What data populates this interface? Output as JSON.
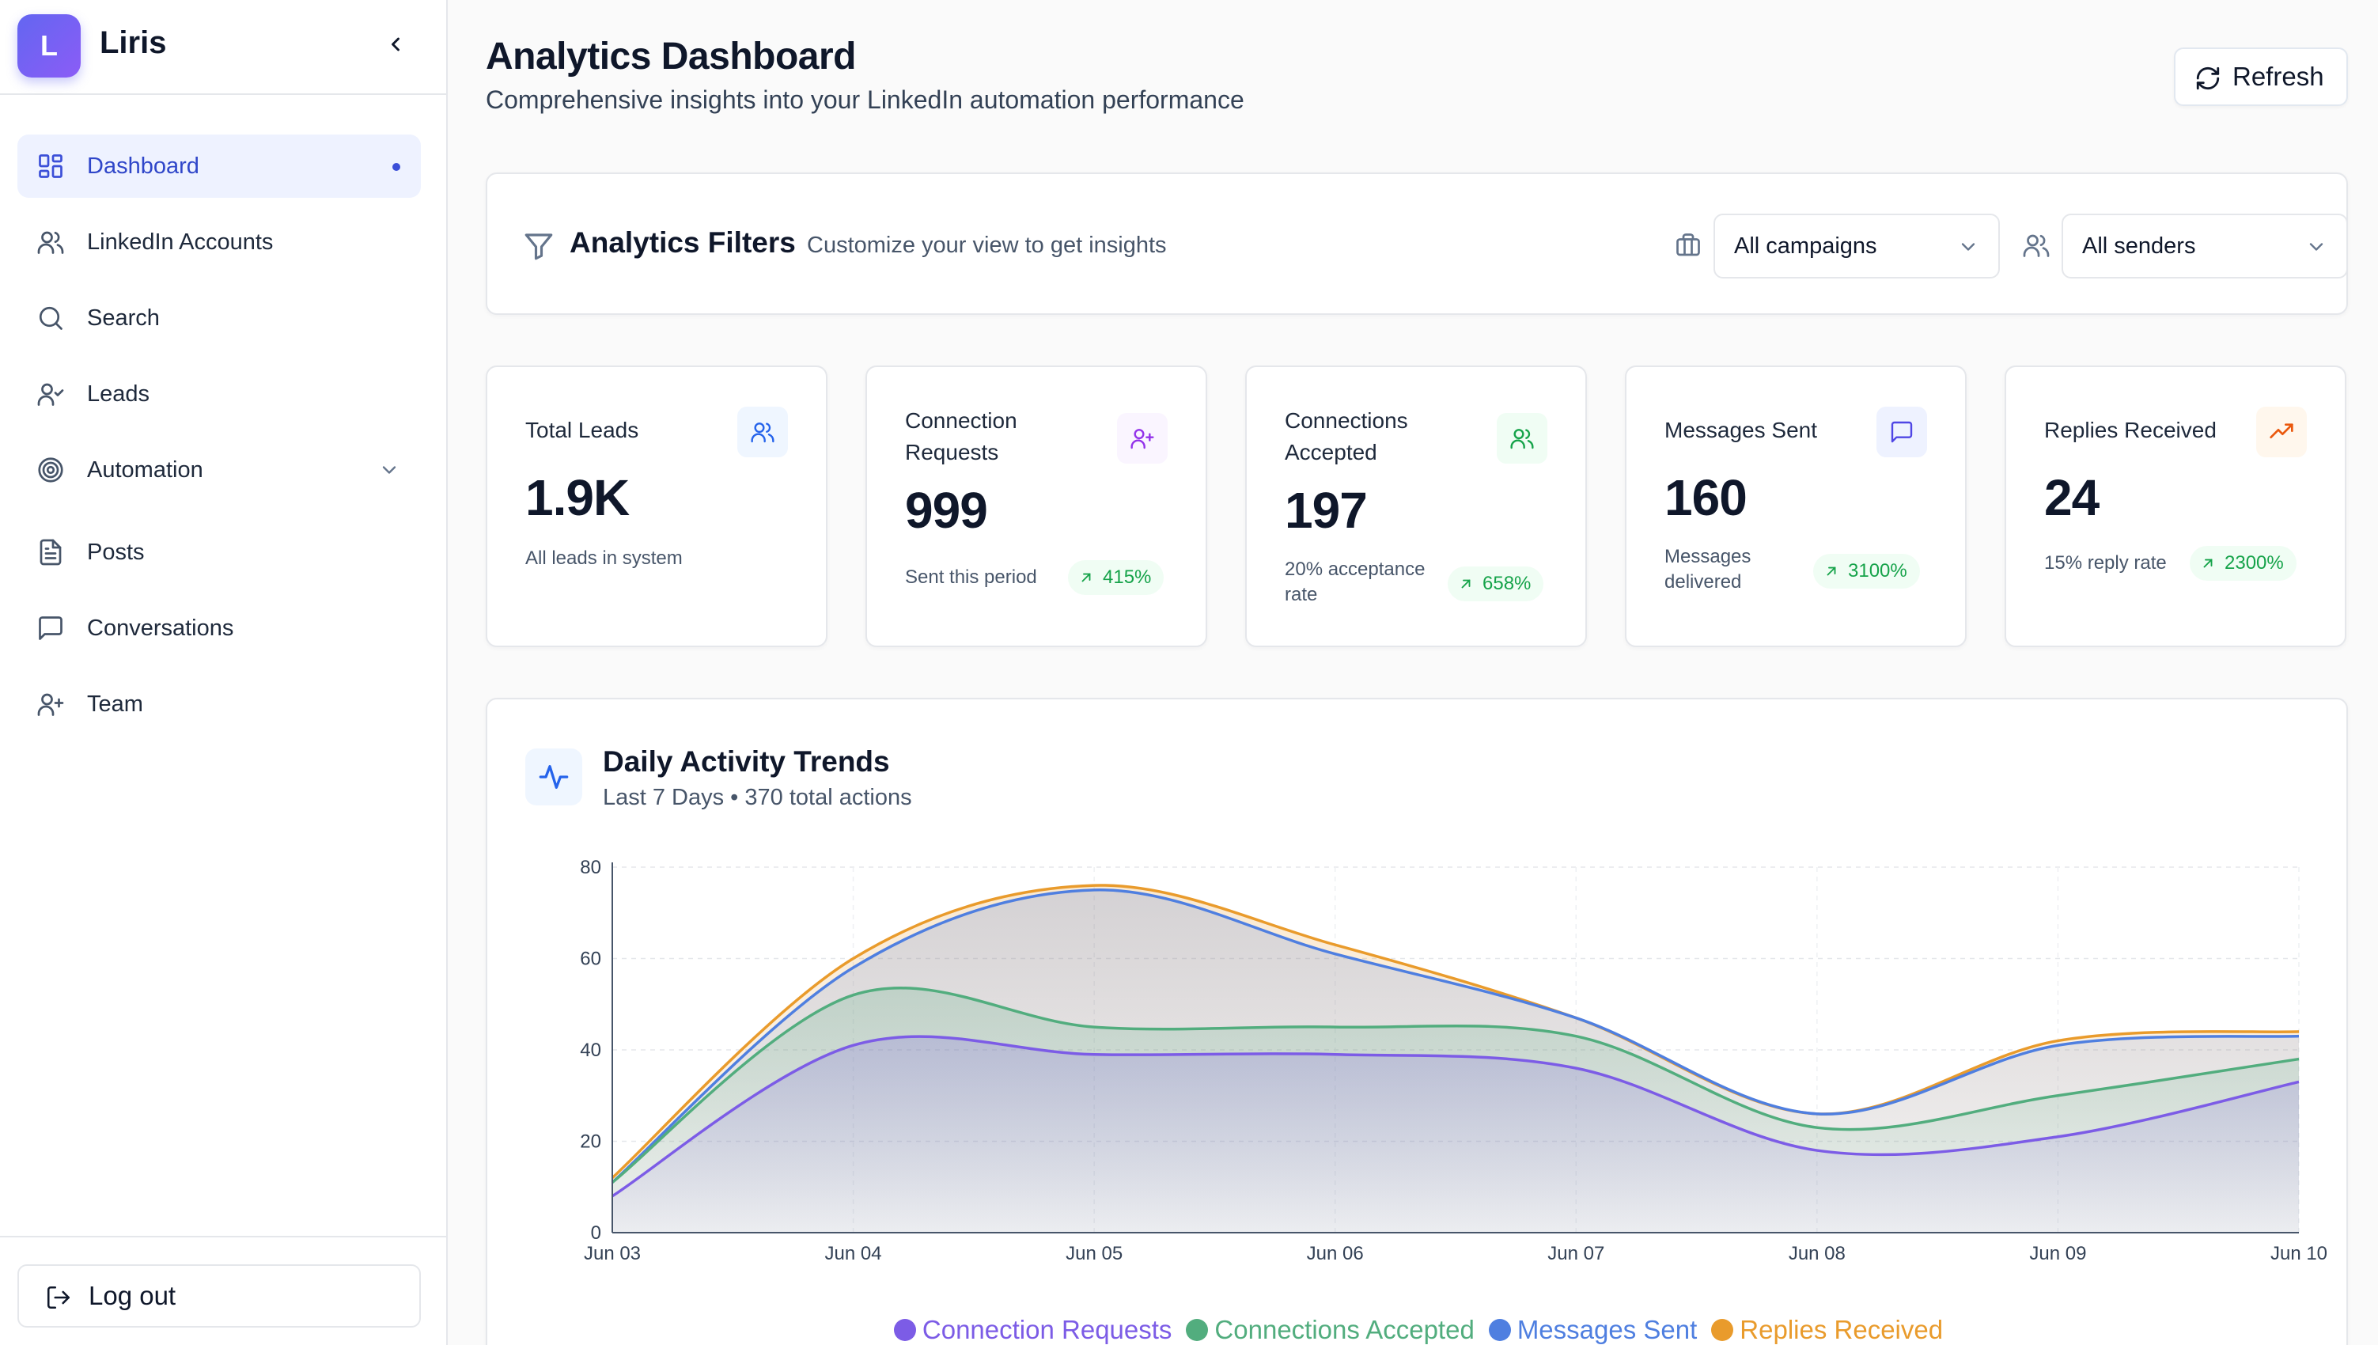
{
  "brand": {
    "logo_letter": "L",
    "name": "Liris"
  },
  "nav": {
    "items": [
      {
        "label": "Dashboard",
        "icon": "dashboard-grid-icon",
        "active": true
      },
      {
        "label": "LinkedIn Accounts",
        "icon": "users-icon"
      },
      {
        "label": "Search",
        "icon": "search-icon"
      },
      {
        "label": "Leads",
        "icon": "user-check-icon"
      },
      {
        "label": "Automation",
        "icon": "target-icon",
        "expandable": true
      },
      {
        "label": "Posts",
        "icon": "document-icon"
      },
      {
        "label": "Conversations",
        "icon": "message-square-icon"
      },
      {
        "label": "Team",
        "icon": "user-plus-icon"
      }
    ],
    "logout_label": "Log out"
  },
  "header": {
    "title": "Analytics Dashboard",
    "subtitle": "Comprehensive insights into your LinkedIn automation performance",
    "refresh_label": "Refresh"
  },
  "filters": {
    "title": "Analytics Filters",
    "subtitle": "Customize your view to get insights",
    "campaign_value": "All campaigns",
    "sender_value": "All senders"
  },
  "stats": [
    {
      "label": "Total Leads",
      "value": "1.9K",
      "note": "All leads in system",
      "badge": "",
      "icon": "users-icon",
      "accent": "#2563eb",
      "icon_bg": "#eff6ff"
    },
    {
      "label": "Connection Requests",
      "value": "999",
      "note": "Sent this period",
      "badge": "415%",
      "icon": "user-plus-icon",
      "accent": "#9333ea",
      "icon_bg": "#faf5ff"
    },
    {
      "label": "Connections Accepted",
      "value": "197",
      "note": "20% acceptance rate",
      "badge": "658%",
      "icon": "users-icon",
      "accent": "#16a34a",
      "icon_bg": "#f0fdf4"
    },
    {
      "label": "Messages Sent",
      "value": "160",
      "note": "Messages delivered",
      "badge": "3100%",
      "icon": "message-square-icon",
      "accent": "#4f46e5",
      "icon_bg": "#eef2ff"
    },
    {
      "label": "Replies Received",
      "value": "24",
      "note": "15% reply rate",
      "badge": "2300%",
      "icon": "trending-up-icon",
      "accent": "#ea580c",
      "icon_bg": "#fff7ed"
    }
  ],
  "activity": {
    "title": "Daily Activity Trends",
    "subtitle": "Last 7 Days • 370 total actions"
  },
  "chart_data": {
    "type": "area",
    "categories": [
      "Jun 03",
      "Jun 04",
      "Jun 05",
      "Jun 06",
      "Jun 07",
      "Jun 08",
      "Jun 09",
      "Jun 10"
    ],
    "ylim": [
      0,
      80
    ],
    "yticks": [
      0,
      20,
      40,
      60,
      80
    ],
    "grid": true,
    "legend_position": "bottom",
    "stacked": true,
    "series": [
      {
        "name": "Connection Requests",
        "color": "#7c5ce6",
        "values": [
          8,
          41,
          39,
          39,
          36,
          18,
          21,
          33
        ]
      },
      {
        "name": "Connections Accepted",
        "color": "#52ad7e",
        "values": [
          11,
          52,
          45,
          45,
          43,
          23,
          30,
          38
        ]
      },
      {
        "name": "Messages Sent",
        "color": "#4f7fe0",
        "values": [
          11,
          58,
          75,
          61,
          47,
          26,
          41,
          43
        ]
      },
      {
        "name": "Replies Received",
        "color": "#e99b2c",
        "values": [
          12,
          60,
          76,
          63,
          47,
          26,
          42,
          44
        ]
      }
    ]
  }
}
